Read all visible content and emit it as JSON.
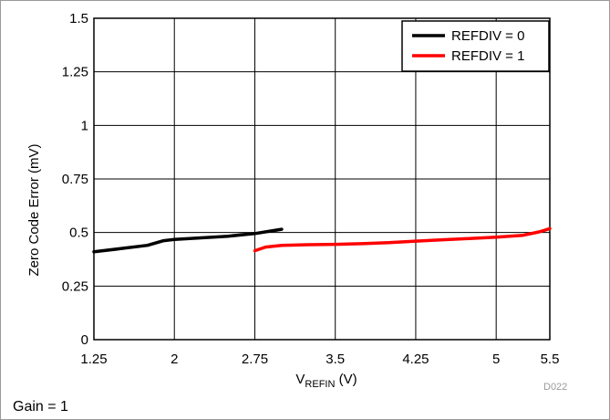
{
  "chart_data": {
    "type": "line",
    "xlabel_main": "V",
    "xlabel_sub": "REFIN",
    "xlabel_unit": " (V)",
    "ylabel": "Zero Code Error (mV)",
    "xlim": [
      1.25,
      5.5
    ],
    "ylim": [
      0,
      1.5
    ],
    "x_ticks": [
      1.25,
      2,
      2.75,
      3.5,
      4.25,
      5,
      5.5
    ],
    "x_tick_labels": [
      "1.25",
      "2",
      "2.75",
      "3.5",
      "4.25",
      "5",
      "5.5"
    ],
    "y_ticks": [
      0,
      0.25,
      0.5,
      0.75,
      1,
      1.25,
      1.5
    ],
    "y_tick_labels": [
      "0",
      "0.25",
      "0.5",
      "0.75",
      "1",
      "1.25",
      "1.5"
    ],
    "grid": true,
    "legend_position": "top-right",
    "series": [
      {
        "name": "REFDIV = 0",
        "color": "#000000",
        "x": [
          1.25,
          1.5,
          1.75,
          1.9,
          2.0,
          2.25,
          2.5,
          2.75,
          2.9,
          3.0
        ],
        "y": [
          0.41,
          0.425,
          0.44,
          0.462,
          0.468,
          0.475,
          0.483,
          0.495,
          0.507,
          0.515
        ]
      },
      {
        "name": "REFDIV = 1",
        "color": "#ff0000",
        "x": [
          2.75,
          2.85,
          3.0,
          3.25,
          3.5,
          3.75,
          4.0,
          4.25,
          4.5,
          4.75,
          5.0,
          5.25,
          5.4,
          5.5
        ],
        "y": [
          0.415,
          0.432,
          0.44,
          0.443,
          0.445,
          0.448,
          0.453,
          0.46,
          0.466,
          0.472,
          0.478,
          0.487,
          0.503,
          0.518
        ]
      }
    ]
  },
  "code": "D022",
  "footer": "Gain = 1"
}
